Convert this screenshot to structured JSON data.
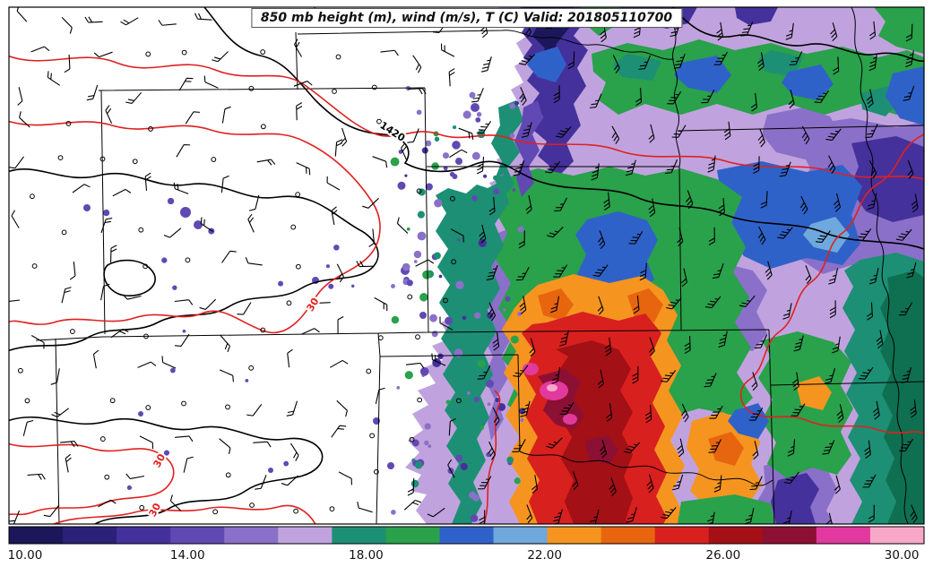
{
  "chart_data": {
    "type": "heatmap",
    "variant": "filled contour (contourf) weather map with line contours and wind barbs",
    "title": "850 mb height (m), wind (m/s), T (C) Valid: 201805110700",
    "level": "850 mb",
    "valid": "201805110700",
    "fill_variable": "T (C)",
    "fill_levels": [
      10,
      11.25,
      12.5,
      13.75,
      15,
      16.25,
      17.5,
      18.75,
      20,
      21.25,
      22.5,
      23.75,
      25,
      26.25,
      27.5,
      28.75,
      30,
      30.5
    ],
    "fill_colors": [
      "#1b175a",
      "#2c2178",
      "#44319b",
      "#6149b3",
      "#8a70c9",
      "#c0a3de",
      "#1d8f74",
      "#2aa14b",
      "#2f62c9",
      "#6fa8dc",
      "#f59520",
      "#e8650f",
      "#d8201f",
      "#a31016",
      "#8c1034",
      "#e2399e",
      "#f7a8c9"
    ],
    "colorbar": {
      "ticks": [
        "10.00",
        "14.00",
        "18.00",
        "22.00",
        "26.00",
        "30.00"
      ],
      "min": 10,
      "max": 30.5,
      "position": "bottom-horizontal"
    },
    "contours": [
      {
        "name": "850 mb height (m)",
        "color": "#000000",
        "visible_labels": [
          "1420"
        ]
      },
      {
        "name": "red contour",
        "color": "#e02020",
        "visible_labels": [
          "30",
          "30",
          "30"
        ]
      }
    ],
    "wind": {
      "symbol": "barbs",
      "units": "m/s",
      "calm_symbol": "open circle"
    },
    "grid": "off",
    "legend": "none"
  },
  "colors": {
    "map_background": "#ffffff",
    "frame": "#000000",
    "state_border": "#000000",
    "height_contour": "#000000",
    "red_contour": "#e02020",
    "barb": "#000000",
    "dark_green_edge": "#0e7050",
    "tick_label": "#111111"
  }
}
